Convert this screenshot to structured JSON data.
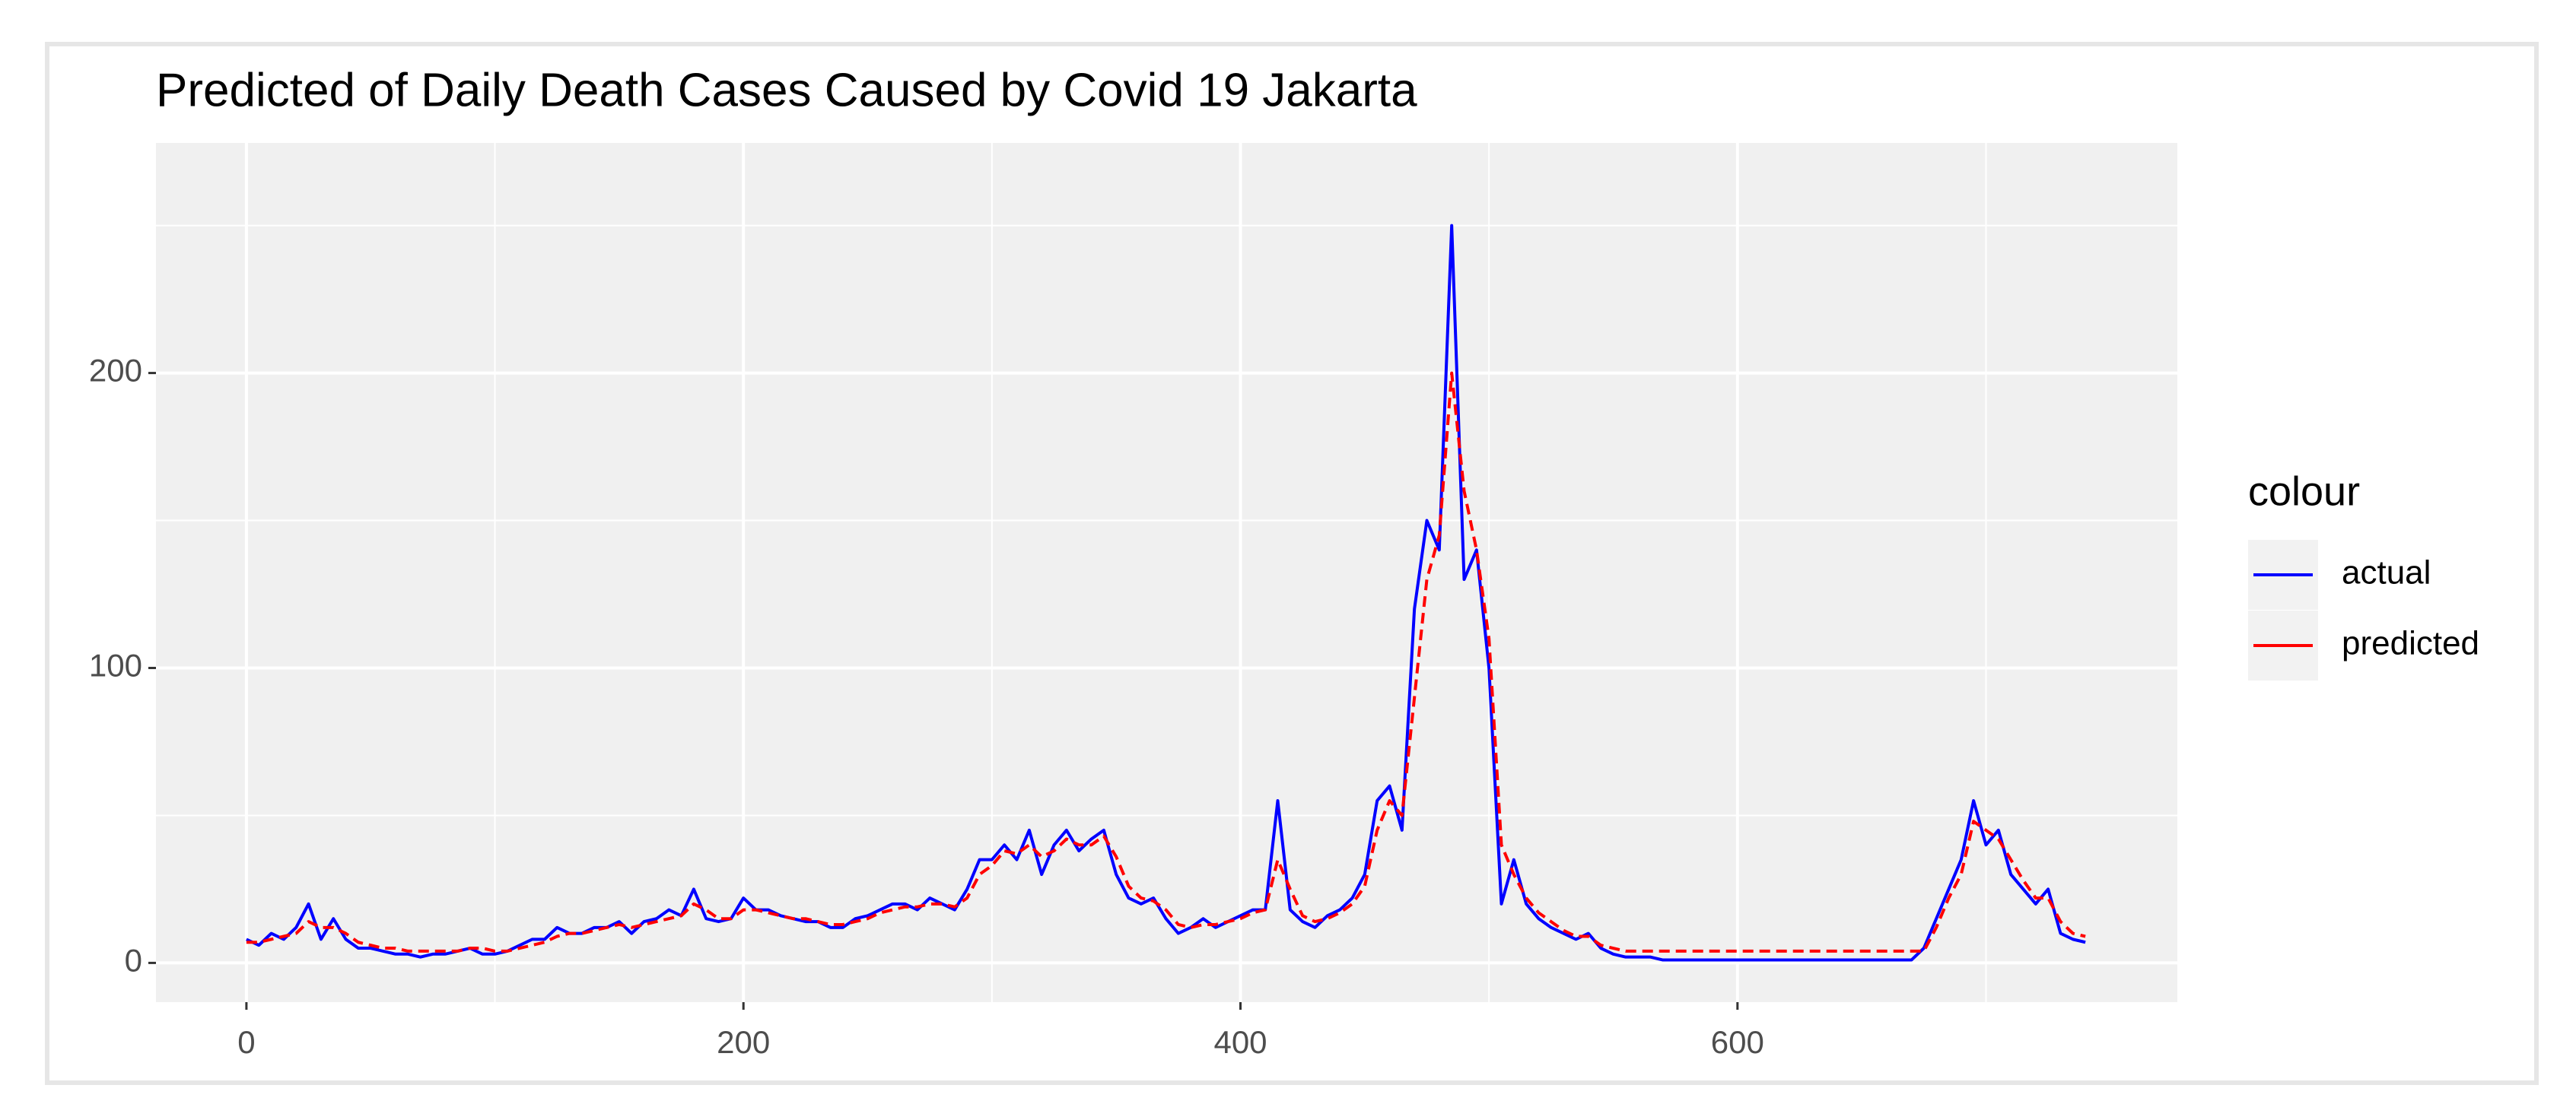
{
  "chart_data": {
    "type": "line",
    "title": "Predicted of Daily Death Cases Caused by Covid 19 Jakarta",
    "legend_title": "colour",
    "legend": "right",
    "grid": true,
    "x": [
      0,
      5,
      10,
      15,
      20,
      25,
      30,
      35,
      40,
      45,
      50,
      55,
      60,
      65,
      70,
      75,
      80,
      85,
      90,
      95,
      100,
      105,
      110,
      115,
      120,
      125,
      130,
      135,
      140,
      145,
      150,
      155,
      160,
      165,
      170,
      175,
      180,
      185,
      190,
      195,
      200,
      205,
      210,
      215,
      220,
      225,
      230,
      235,
      240,
      245,
      250,
      255,
      260,
      265,
      270,
      275,
      280,
      285,
      290,
      295,
      300,
      305,
      310,
      315,
      320,
      325,
      330,
      335,
      340,
      345,
      350,
      355,
      360,
      365,
      370,
      375,
      380,
      385,
      390,
      395,
      400,
      405,
      410,
      415,
      420,
      425,
      430,
      435,
      440,
      445,
      450,
      455,
      460,
      465,
      470,
      475,
      480,
      485,
      490,
      495,
      500,
      505,
      510,
      515,
      520,
      525,
      530,
      535,
      540,
      545,
      550,
      555,
      560,
      565,
      570,
      575,
      580,
      585,
      590,
      595,
      600,
      605,
      610,
      615,
      620,
      625,
      630,
      635,
      640,
      645,
      650,
      655,
      660,
      665,
      670,
      675,
      680,
      685,
      690,
      695,
      700,
      705,
      710,
      715,
      720,
      725,
      730,
      735,
      740
    ],
    "series": [
      {
        "name": "actual",
        "color": "#0000ff",
        "dashed": false,
        "values": [
          8,
          6,
          10,
          8,
          12,
          20,
          8,
          15,
          8,
          5,
          5,
          4,
          3,
          3,
          2,
          3,
          3,
          4,
          5,
          3,
          3,
          4,
          6,
          8,
          8,
          12,
          10,
          10,
          12,
          12,
          14,
          10,
          14,
          15,
          18,
          16,
          25,
          15,
          14,
          15,
          22,
          18,
          18,
          16,
          15,
          14,
          14,
          12,
          12,
          15,
          16,
          18,
          20,
          20,
          18,
          22,
          20,
          18,
          25,
          35,
          35,
          40,
          35,
          45,
          30,
          40,
          45,
          38,
          42,
          45,
          30,
          22,
          20,
          22,
          15,
          10,
          12,
          15,
          12,
          14,
          16,
          18,
          18,
          55,
          18,
          14,
          12,
          16,
          18,
          22,
          30,
          55,
          60,
          45,
          120,
          150,
          140,
          250,
          130,
          140,
          100,
          20,
          35,
          20,
          15,
          12,
          10,
          8,
          10,
          5,
          3,
          2,
          2,
          2,
          1,
          1,
          1,
          1,
          1,
          1,
          1,
          1,
          1,
          1,
          1,
          1,
          1,
          1,
          1,
          1,
          1,
          1,
          1,
          1,
          1,
          5,
          15,
          25,
          35,
          55,
          40,
          45,
          30,
          25,
          20,
          25,
          10,
          8,
          7
        ]
      },
      {
        "name": "predicted",
        "color": "#ff0000",
        "dashed": true,
        "values": [
          7,
          7,
          8,
          9,
          10,
          14,
          12,
          12,
          10,
          7,
          6,
          5,
          5,
          4,
          4,
          4,
          4,
          4,
          5,
          5,
          4,
          4,
          5,
          6,
          7,
          9,
          10,
          10,
          11,
          12,
          13,
          12,
          13,
          14,
          15,
          16,
          20,
          18,
          15,
          15,
          18,
          18,
          17,
          16,
          15,
          15,
          14,
          13,
          13,
          14,
          15,
          17,
          18,
          19,
          19,
          20,
          20,
          19,
          22,
          30,
          33,
          38,
          37,
          40,
          36,
          38,
          42,
          40,
          40,
          43,
          36,
          26,
          22,
          21,
          18,
          13,
          12,
          13,
          13,
          14,
          15,
          17,
          18,
          35,
          25,
          16,
          14,
          15,
          17,
          20,
          26,
          45,
          55,
          50,
          90,
          130,
          145,
          200,
          160,
          140,
          110,
          40,
          30,
          22,
          17,
          14,
          11,
          9,
          9,
          6,
          5,
          4,
          4,
          4,
          4,
          4,
          4,
          4,
          4,
          4,
          4,
          4,
          4,
          4,
          4,
          4,
          4,
          4,
          4,
          4,
          4,
          4,
          4,
          4,
          4,
          4,
          12,
          22,
          30,
          48,
          45,
          42,
          35,
          28,
          22,
          22,
          14,
          10,
          9
        ]
      }
    ],
    "xlim": [
      -36.4,
      777
    ],
    "ylim": [
      -13.3,
      278
    ],
    "xticks": [
      0,
      200,
      400,
      600
    ],
    "yticks": [
      0,
      100,
      200
    ],
    "xminor": [
      100,
      300,
      500,
      700
    ],
    "yminor": [
      50,
      150,
      250
    ]
  }
}
